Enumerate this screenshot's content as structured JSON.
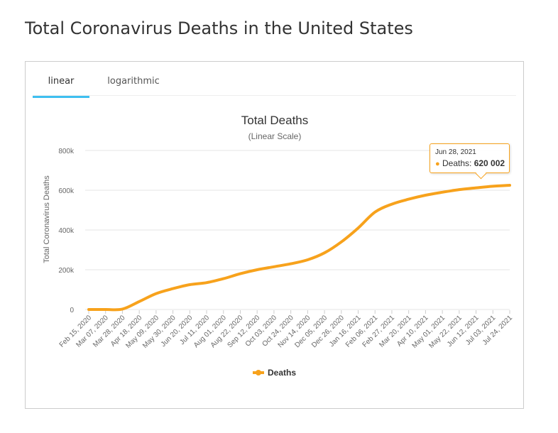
{
  "page": {
    "title": "Total Coronavirus Deaths in the United States"
  },
  "tabs": [
    {
      "label": "linear",
      "active": true
    },
    {
      "label": "logarithmic",
      "active": false
    }
  ],
  "colors": {
    "series": "#f7a21c",
    "tab_active_underline": "#3ebff0",
    "grid": "#e6e6e6"
  },
  "tooltip": {
    "date": "Jun 28, 2021",
    "series_label": "Deaths:",
    "value_text": "620 002"
  },
  "chart_data": {
    "type": "line",
    "title": "Total Deaths",
    "subtitle": "(Linear Scale)",
    "ylabel": "Total Coronavirus Deaths",
    "xlabel": "",
    "ylim": [
      0,
      800000
    ],
    "y_ticks": [
      0,
      200000,
      400000,
      600000,
      800000
    ],
    "y_tick_labels": [
      "0",
      "200k",
      "400k",
      "600k",
      "800k"
    ],
    "x_tick_labels": [
      "Feb 15, 2020",
      "Mar 07, 2020",
      "Mar 28, 2020",
      "Apr 18, 2020",
      "May 09, 2020",
      "May 30, 2020",
      "Jun 20, 2020",
      "Jul 11, 2020",
      "Aug 01, 2020",
      "Aug 22, 2020",
      "Sep 12, 2020",
      "Oct 03, 2020",
      "Oct 24, 2020",
      "Nov 14, 2020",
      "Dec 05, 2020",
      "Dec 26, 2020",
      "Jan 16, 2021",
      "Feb 06, 2021",
      "Feb 27, 2021",
      "Mar 20, 2021",
      "Apr 10, 2021",
      "May 01, 2021",
      "May 22, 2021",
      "Jun 12, 2021",
      "Jul 03, 2021",
      "Jul 24, 2021"
    ],
    "grid": true,
    "legend": "bottom-center",
    "series": [
      {
        "name": "Deaths",
        "x": [
          "Feb 15, 2020",
          "Mar 07, 2020",
          "Mar 28, 2020",
          "Apr 18, 2020",
          "May 09, 2020",
          "May 30, 2020",
          "Jun 20, 2020",
          "Jul 11, 2020",
          "Aug 01, 2020",
          "Aug 22, 2020",
          "Sep 12, 2020",
          "Oct 03, 2020",
          "Oct 24, 2020",
          "Nov 14, 2020",
          "Dec 05, 2020",
          "Dec 26, 2020",
          "Jan 16, 2021",
          "Feb 06, 2021",
          "Feb 27, 2021",
          "Mar 20, 2021",
          "Apr 10, 2021",
          "May 01, 2021",
          "May 22, 2021",
          "Jun 12, 2021",
          "Jul 03, 2021",
          "Jul 24, 2021"
        ],
        "values": [
          0,
          0,
          2000,
          40000,
          80000,
          105000,
          125000,
          135000,
          155000,
          180000,
          200000,
          215000,
          230000,
          250000,
          285000,
          340000,
          410000,
          490000,
          530000,
          555000,
          575000,
          590000,
          603000,
          612000,
          620002,
          625000
        ]
      }
    ]
  }
}
